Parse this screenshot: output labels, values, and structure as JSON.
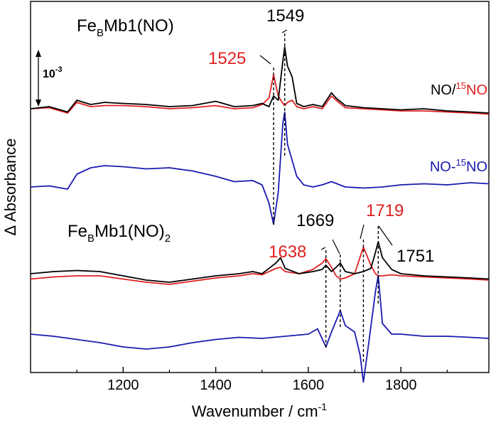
{
  "chart_data": {
    "type": "line",
    "xlabel": "Wavenumber / cm",
    "xlabel_sup": "-1",
    "ylabel": "Δ Absorbance",
    "xlim": [
      1000,
      1990
    ],
    "xticks": [
      1200,
      1400,
      1600,
      1800
    ],
    "scale_bar": {
      "base": "10",
      "exp": "-3"
    },
    "colors": {
      "black": "#000000",
      "red": "#e02020",
      "blue": "#1a1ab0",
      "dashed": "#000000"
    },
    "panels": [
      {
        "title_main": "Fe",
        "title_sub": "B",
        "title_rest": "Mb1(NO)",
        "title_sub2": "",
        "legend_prefix": "NO/",
        "legend_sup": "15",
        "legend_suffix": "NO",
        "diff_prefix": "NO-",
        "diff_sup": "15",
        "diff_suffix": "NO",
        "peak_labels": [
          {
            "text": "1549",
            "x": 1549,
            "color": "black"
          },
          {
            "text": "1525",
            "x": 1525,
            "color": "red"
          }
        ],
        "series": [
          {
            "name": "NO",
            "color": "black",
            "x": [
              1000,
              1040,
              1080,
              1100,
              1130,
              1160,
              1200,
              1250,
              1300,
              1350,
              1400,
              1440,
              1480,
              1500,
              1515,
              1525,
              1535,
              1545,
              1549,
              1555,
              1565,
              1575,
              1590,
              1610,
              1630,
              1650,
              1660,
              1680,
              1720,
              1760,
              1800,
              1850,
              1900,
              1950,
              1990
            ],
            "y": [
              0.0,
              0.02,
              -0.03,
              0.08,
              0.04,
              0.06,
              0.05,
              0.04,
              0.02,
              0.03,
              0.07,
              0.02,
              0.03,
              0.05,
              0.02,
              0.12,
              0.08,
              0.45,
              0.58,
              0.4,
              0.3,
              0.05,
              0.02,
              0.04,
              0.02,
              0.15,
              0.1,
              0.03,
              0.01,
              0.0,
              -0.01,
              0.0,
              -0.02,
              -0.03,
              -0.04
            ]
          },
          {
            "name": "15NO",
            "color": "red",
            "x": [
              1000,
              1040,
              1080,
              1100,
              1130,
              1160,
              1200,
              1250,
              1300,
              1350,
              1400,
              1440,
              1480,
              1500,
              1515,
              1525,
              1535,
              1545,
              1549,
              1555,
              1565,
              1575,
              1590,
              1610,
              1630,
              1650,
              1660,
              1680,
              1720,
              1760,
              1800,
              1850,
              1900,
              1950,
              1990
            ],
            "y": [
              0.0,
              0.01,
              -0.04,
              0.06,
              0.02,
              0.03,
              0.03,
              0.02,
              0.0,
              0.01,
              0.03,
              0.0,
              0.01,
              0.04,
              0.1,
              0.32,
              0.12,
              0.05,
              0.03,
              0.06,
              0.08,
              0.02,
              0.0,
              0.02,
              0.0,
              0.12,
              0.08,
              0.01,
              0.0,
              -0.01,
              -0.02,
              -0.02,
              -0.03,
              -0.04,
              -0.05
            ]
          }
        ],
        "difference": {
          "name": "NO-15NO",
          "color": "blue",
          "x": [
            1000,
            1040,
            1080,
            1100,
            1130,
            1160,
            1200,
            1250,
            1300,
            1350,
            1400,
            1440,
            1480,
            1500,
            1515,
            1525,
            1535,
            1545,
            1549,
            1555,
            1565,
            1575,
            1590,
            1610,
            1630,
            1650,
            1680,
            1720,
            1760,
            1800,
            1850,
            1900,
            1950,
            1990
          ],
          "y": [
            0.0,
            0.01,
            -0.02,
            0.12,
            0.18,
            0.2,
            0.19,
            0.17,
            0.18,
            0.15,
            0.1,
            0.05,
            0.06,
            0.02,
            -0.15,
            -0.35,
            -0.05,
            0.6,
            0.7,
            0.4,
            0.25,
            0.1,
            0.02,
            0.0,
            0.02,
            0.05,
            0.0,
            -0.01,
            0.0,
            0.02,
            0.03,
            0.02,
            0.04,
            0.03
          ]
        }
      },
      {
        "title_main": "Fe",
        "title_sub": "B",
        "title_rest": "Mb1(NO)",
        "title_sub2": "2",
        "peak_labels": [
          {
            "text": "1669",
            "x": 1669,
            "color": "black"
          },
          {
            "text": "1719",
            "x": 1719,
            "color": "red"
          },
          {
            "text": "1638",
            "x": 1638,
            "color": "red"
          },
          {
            "text": "1751",
            "x": 1751,
            "color": "black"
          }
        ],
        "series": [
          {
            "name": "NO",
            "color": "black",
            "x": [
              1000,
              1050,
              1100,
              1150,
              1200,
              1250,
              1300,
              1350,
              1400,
              1450,
              1480,
              1500,
              1530,
              1540,
              1550,
              1580,
              1610,
              1630,
              1638,
              1650,
              1660,
              1669,
              1680,
              1700,
              1719,
              1735,
              1745,
              1751,
              1760,
              1780,
              1800,
              1850,
              1900,
              1950,
              1990
            ],
            "y": [
              0.0,
              0.02,
              0.03,
              0.02,
              -0.02,
              -0.06,
              -0.08,
              -0.05,
              -0.02,
              0.0,
              0.02,
              0.0,
              0.1,
              0.15,
              0.05,
              0.0,
              0.02,
              0.04,
              0.08,
              0.02,
              0.06,
              0.1,
              0.02,
              0.0,
              0.02,
              0.05,
              0.2,
              0.3,
              0.15,
              0.04,
              0.0,
              -0.02,
              -0.03,
              -0.04,
              -0.05
            ]
          },
          {
            "name": "15NO",
            "color": "red",
            "x": [
              1000,
              1050,
              1100,
              1150,
              1200,
              1250,
              1300,
              1350,
              1400,
              1450,
              1480,
              1500,
              1530,
              1540,
              1550,
              1580,
              1610,
              1630,
              1638,
              1650,
              1660,
              1669,
              1680,
              1700,
              1719,
              1735,
              1745,
              1751,
              1760,
              1780,
              1800,
              1850,
              1900,
              1950,
              1990
            ],
            "y": [
              -0.05,
              -0.03,
              -0.02,
              -0.02,
              -0.05,
              -0.08,
              -0.1,
              -0.07,
              -0.04,
              -0.02,
              0.0,
              -0.01,
              0.05,
              0.06,
              0.02,
              0.0,
              0.04,
              0.1,
              0.14,
              0.06,
              -0.02,
              -0.05,
              -0.04,
              0.0,
              0.25,
              0.08,
              0.0,
              -0.02,
              -0.02,
              -0.01,
              -0.02,
              -0.03,
              -0.04,
              -0.05,
              -0.06
            ]
          }
        ],
        "difference": {
          "name": "NO-15NO",
          "color": "blue",
          "x": [
            1000,
            1050,
            1100,
            1150,
            1200,
            1250,
            1300,
            1350,
            1400,
            1450,
            1500,
            1550,
            1600,
            1620,
            1638,
            1650,
            1669,
            1680,
            1700,
            1712,
            1719,
            1730,
            1745,
            1751,
            1760,
            1780,
            1800,
            1850,
            1900,
            1950,
            1990
          ],
          "y": [
            0.0,
            -0.02,
            -0.05,
            -0.08,
            -0.12,
            -0.14,
            -0.12,
            -0.08,
            -0.05,
            -0.03,
            -0.04,
            -0.02,
            0.0,
            0.05,
            -0.12,
            0.02,
            0.22,
            0.08,
            0.02,
            -0.2,
            -0.45,
            -0.1,
            0.4,
            0.55,
            0.1,
            0.0,
            0.0,
            -0.02,
            -0.02,
            -0.03,
            -0.04
          ]
        }
      }
    ]
  }
}
